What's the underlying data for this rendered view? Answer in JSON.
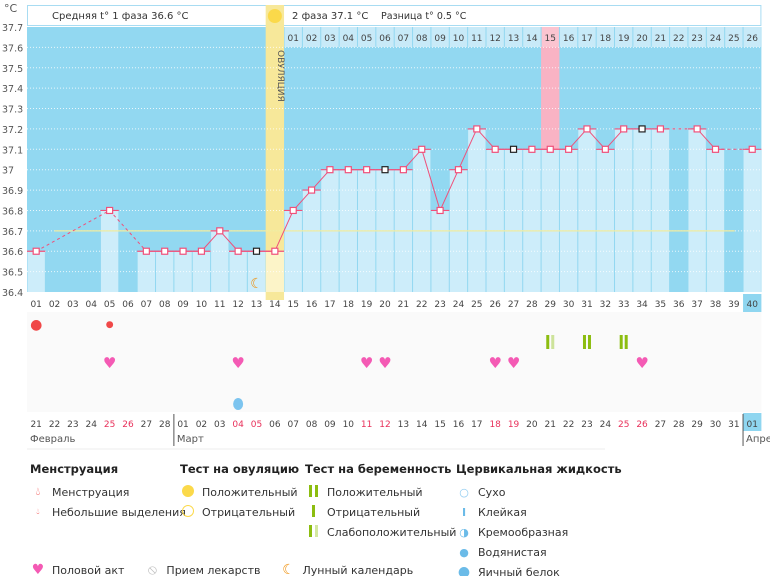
{
  "chart_data": {
    "type": "line",
    "unit_label": "°C",
    "ylim": [
      36.4,
      37.7
    ],
    "yticks": [
      "37.7",
      "37.6",
      "37.5",
      "37.4",
      "37.3",
      "37.2",
      "37.1",
      "37",
      "36.9",
      "36.8",
      "36.7",
      "36.6",
      "36.5",
      "36.4"
    ],
    "header": {
      "phase1": "Средняя t° 1 фаза 36.6 °C",
      "phase2": "2 фаза 37.1 °C",
      "diff": "Разница t° 0.5 °C",
      "ovulation_label": "ОВУЛЯЦИЯ"
    },
    "ovulation_day": 14,
    "highlight_day": 29,
    "coverline": 36.7,
    "cycle_days": [
      "01",
      "02",
      "03",
      "04",
      "05",
      "06",
      "07",
      "08",
      "09",
      "10",
      "11",
      "12",
      "13",
      "14",
      "15",
      "16",
      "17",
      "18",
      "19",
      "20",
      "21",
      "22",
      "23",
      "24",
      "25",
      "26",
      "27",
      "28",
      "29",
      "30",
      "31",
      "32",
      "33",
      "34",
      "35",
      "36",
      "37",
      "38",
      "39",
      "40"
    ],
    "temperatures": [
      36.6,
      null,
      null,
      null,
      36.8,
      null,
      36.6,
      36.6,
      36.6,
      36.6,
      36.7,
      36.6,
      36.6,
      36.6,
      36.8,
      36.9,
      37.0,
      37.0,
      37.0,
      37.0,
      37.0,
      37.1,
      36.8,
      37.0,
      37.2,
      37.1,
      37.1,
      37.1,
      37.1,
      37.1,
      37.2,
      37.1,
      37.2,
      37.2,
      37.2,
      null,
      37.2,
      37.1,
      null,
      37.1
    ],
    "marked_days": [
      13,
      20,
      27,
      34
    ],
    "phase2_days": [
      "01",
      "02",
      "03",
      "04",
      "05",
      "06",
      "07",
      "08",
      "09",
      "10",
      "11",
      "12",
      "13",
      "14",
      "15",
      "16",
      "17",
      "18",
      "19",
      "20",
      "21",
      "22",
      "23",
      "24",
      "25",
      "26"
    ],
    "dates": [
      "21",
      "22",
      "23",
      "24",
      "25",
      "26",
      "27",
      "28",
      "01",
      "02",
      "03",
      "04",
      "05",
      "06",
      "07",
      "08",
      "09",
      "10",
      "11",
      "12",
      "13",
      "14",
      "15",
      "16",
      "17",
      "18",
      "19",
      "20",
      "21",
      "22",
      "23",
      "24",
      "25",
      "26",
      "27",
      "28",
      "29",
      "30",
      "31",
      "01"
    ],
    "weekend_dates_idx": [
      4,
      5,
      11,
      12,
      18,
      19,
      25,
      26,
      32,
      33
    ],
    "months": [
      {
        "label": "Февраль",
        "start": 0
      },
      {
        "label": "Март",
        "start": 8
      },
      {
        "label": "Апрель",
        "start": 39
      }
    ],
    "symbols": {
      "menstruation": [
        1
      ],
      "spotting": [
        5
      ],
      "pregnancy_positive": [
        31,
        33
      ],
      "pregnancy_mixed": [
        29
      ],
      "intercourse": [
        5,
        12,
        19,
        20,
        26,
        27,
        34
      ],
      "moon": [
        13
      ],
      "cervical_watery": [
        12
      ]
    },
    "colors": {
      "bg": "#92d8f1",
      "bar": "#cdedfa",
      "line": "#f0507a",
      "ovulation": "#f7e89a",
      "highlight": "#f9b3c4",
      "coverline": "#f0eca0",
      "weekend": "#e8305a"
    }
  },
  "legend": {
    "menstruation": {
      "title": "Менструация",
      "items": [
        "Менструация",
        "Небольшие выделения"
      ]
    },
    "ovulation_test": {
      "title": "Тест на овуляцию",
      "items": [
        "Положительный",
        "Отрицательный"
      ]
    },
    "pregnancy_test": {
      "title": "Тест на беременность",
      "items": [
        "Положительный",
        "Отрицательный",
        "Слабоположительный"
      ]
    },
    "cervical": {
      "title": "Цервикальная жидкость",
      "items": [
        "Сухо",
        "Клейкая",
        "Кремообразная",
        "Водянистая",
        "Яичный белок"
      ]
    },
    "other": [
      "Половой акт",
      "Прием лекарств",
      "Лунный календарь"
    ]
  }
}
